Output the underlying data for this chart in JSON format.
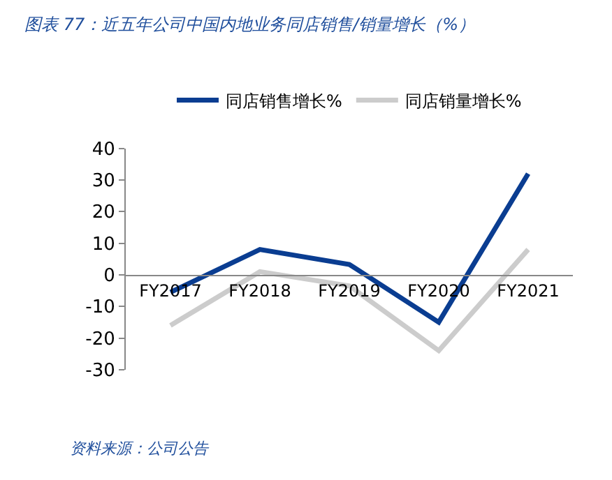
{
  "chart_data": {
    "type": "line",
    "title": "图表 77：近五年公司中国内地业务同店销售/销量增长（%）",
    "categories": [
      "FY2017",
      "FY2018",
      "FY2019",
      "FY2020",
      "FY2021"
    ],
    "series": [
      {
        "name": "同店销售增长%",
        "color": "#0a3d91",
        "values": [
          -5.5,
          8,
          3.3,
          -15,
          32
        ]
      },
      {
        "name": "同店销量增长%",
        "color": "#cccccc",
        "values": [
          -16,
          1,
          -3.5,
          -24,
          8
        ]
      }
    ],
    "ylim": [
      -30,
      40
    ],
    "yticks": [
      -30,
      -20,
      -10,
      0,
      10,
      20,
      30,
      40
    ],
    "legend": "top",
    "marker": "none",
    "line_style": "solid",
    "annotations": [
      "资料来源：公司公告"
    ]
  }
}
